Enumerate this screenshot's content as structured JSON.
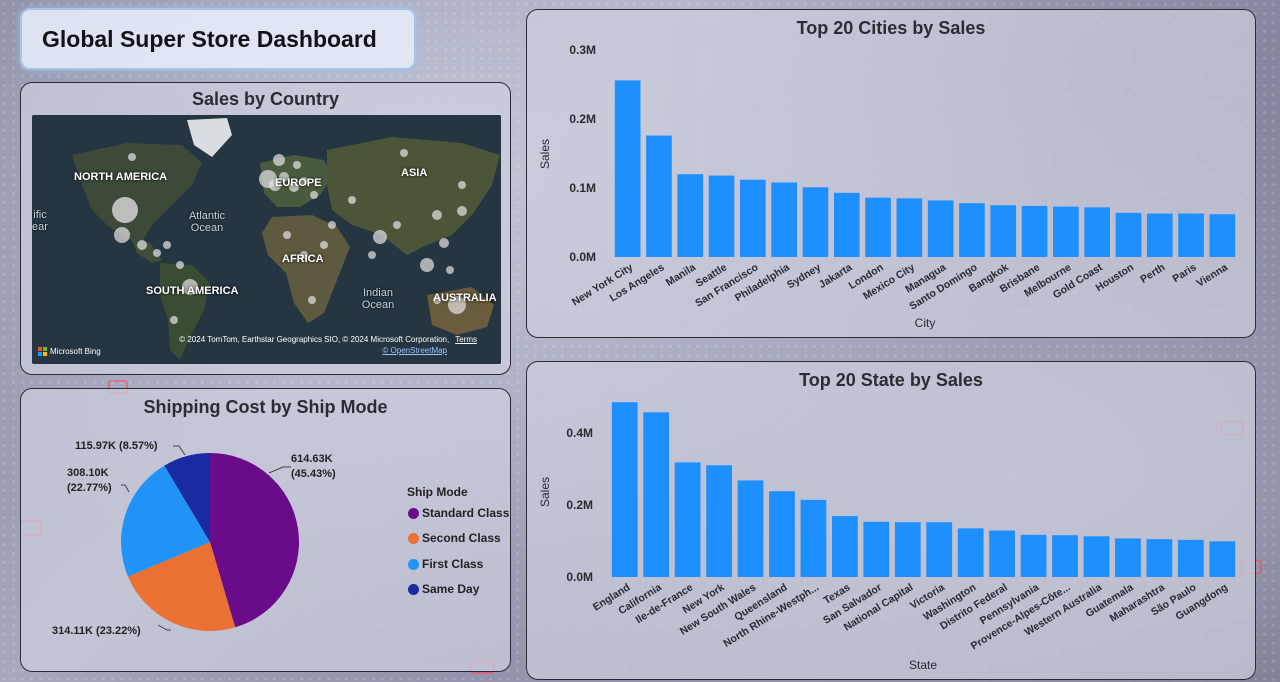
{
  "dashboard_title": "Global Super Store Dashboard",
  "colors": {
    "bar": "#1e8fff",
    "standard_class": "#6a0b8a",
    "second_class": "#ea7034",
    "first_class": "#2192f6",
    "same_day": "#1a2aa0"
  },
  "map": {
    "title": "Sales by Country",
    "continents": [
      "NORTH AMERICA",
      "EUROPE",
      "ASIA",
      "AFRICA",
      "SOUTH AMERICA",
      "AUSTRALIA"
    ],
    "oceans": [
      "Atlantic Ocean",
      "Indian Ocean",
      "ific ean"
    ],
    "attribution": "© 2024 TomTom, Earthstar Geographics SIO, © 2024 Microsoft Corporation,",
    "terms": "Terms",
    "osm": "© OpenStreetMap",
    "bing": "Microsoft Bing"
  },
  "pie": {
    "title": "Shipping Cost by Ship Mode",
    "legend_title": "Ship Mode",
    "slices": [
      {
        "name": "Standard Class",
        "value": 614.63,
        "label_value": "614.63K",
        "label_pct": "(45.43%)",
        "color": "#6a0b8a"
      },
      {
        "name": "Second Class",
        "value": 314.11,
        "label_value": "314.11K",
        "label_pct": "(23.22%)",
        "color": "#ea7034"
      },
      {
        "name": "First Class",
        "value": 308.1,
        "label_value": "308.10K",
        "label_pct": "(22.77%)",
        "color": "#2192f6"
      },
      {
        "name": "Same Day",
        "value": 115.97,
        "label_value": "115.97K",
        "label_pct": "(8.57%)",
        "color": "#1a2aa0"
      }
    ],
    "labels": {
      "standard": "614.63K",
      "standard_pct": "(45.43%)",
      "second": "314.11K (23.22%)",
      "first": "308.10K",
      "first_pct": "(22.77%)",
      "same_day": "115.97K (8.57%)"
    }
  },
  "chart_data": [
    {
      "type": "bar",
      "title": "Top 20 Cities by Sales",
      "xlabel": "City",
      "ylabel": "Sales",
      "ylim": [
        0,
        300000
      ],
      "yticks": [
        {
          "v": 0,
          "label": "0.0M"
        },
        {
          "v": 100000,
          "label": "0.1M"
        },
        {
          "v": 200000,
          "label": "0.2M"
        },
        {
          "v": 300000,
          "label": "0.3M"
        }
      ],
      "categories": [
        "New York City",
        "Los Angeles",
        "Manila",
        "Seattle",
        "San Francisco",
        "Philadelphia",
        "Sydney",
        "Jakarta",
        "London",
        "Mexico City",
        "Managua",
        "Santo Domingo",
        "Bangkok",
        "Brisbane",
        "Melbourne",
        "Gold Coast",
        "Houston",
        "Perth",
        "Paris",
        "Vienna"
      ],
      "values": [
        256000,
        176000,
        120000,
        118000,
        112000,
        108000,
        101000,
        93000,
        86000,
        85000,
        82000,
        78000,
        75000,
        74000,
        73000,
        72000,
        64000,
        63000,
        63000,
        62000
      ]
    },
    {
      "type": "bar",
      "title": "Top 20 State by Sales",
      "xlabel": "State",
      "ylabel": "Sales",
      "ylim": [
        0,
        480000
      ],
      "yticks": [
        {
          "v": 0,
          "label": "0.0M"
        },
        {
          "v": 200000,
          "label": "0.2M"
        },
        {
          "v": 400000,
          "label": "0.4M"
        }
      ],
      "categories": [
        "England",
        "California",
        "Ile-de-France",
        "New York",
        "New South Wales",
        "Queensland",
        "North Rhine-Westph...",
        "Texas",
        "San Salvador",
        "National Capital",
        "Victoria",
        "Washington",
        "Distrito Federal",
        "Pennsylvania",
        "Provence-Alpes-Côte...",
        "Western Australia",
        "Guatemala",
        "Maharashtra",
        "São Paulo",
        "Guangdong"
      ],
      "values": [
        485000,
        457000,
        318000,
        310000,
        268000,
        238000,
        214000,
        169000,
        153000,
        152000,
        152000,
        135000,
        129000,
        117000,
        116000,
        113000,
        107000,
        105000,
        103000,
        99000
      ]
    }
  ]
}
